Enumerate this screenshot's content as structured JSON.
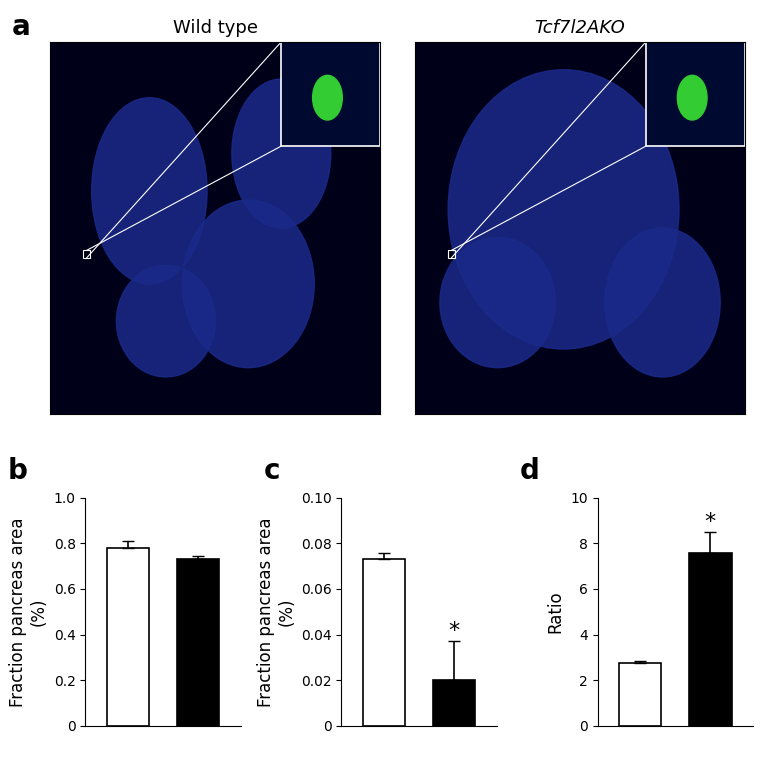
{
  "panel_a": {
    "annotations": [
      "a"
    ],
    "images": [
      {
        "title": "Wild type"
      },
      {
        "title": "Tcf7l2AKO"
      }
    ]
  },
  "chart_data": [
    {
      "type": "bar",
      "annotations": [
        "b"
      ],
      "y_label": "Fraction pancreas area\n(%)",
      "categories": [
        null,
        null
      ],
      "values": [
        0.78,
        0.73
      ],
      "errors": [
        0.03,
        0.015
      ],
      "colors": [
        "#ffffff",
        "#000000"
      ],
      "ylim": [
        0,
        1.0
      ],
      "yticks": [
        0,
        0.2,
        0.4,
        0.6,
        0.8,
        1.0
      ],
      "tick_labels": "y"
    },
    {
      "type": "bar",
      "annotations": [
        "c",
        {
          "text": "*",
          "category": 1
        }
      ],
      "y_label": "Fraction pancreas area\n(%)",
      "categories": [
        null,
        null
      ],
      "values": [
        0.073,
        0.02
      ],
      "errors": [
        0.003,
        0.017
      ],
      "colors": [
        "#ffffff",
        "#000000"
      ],
      "ylim": [
        0,
        0.1
      ],
      "yticks": [
        0,
        0.02,
        0.04,
        0.06,
        0.08,
        {
          "value": 0.1,
          "label": "0.10"
        }
      ],
      "tick_labels": "y"
    },
    {
      "type": "bar",
      "annotations": [
        "d",
        {
          "text": "*",
          "category": 1
        }
      ],
      "y_label": "Ratio",
      "categories": [
        null,
        null
      ],
      "values": [
        2.75,
        7.6
      ],
      "errors": [
        0.08,
        0.9
      ],
      "colors": [
        "#ffffff",
        "#000000"
      ],
      "ylim": [
        0,
        10
      ],
      "yticks": [
        0,
        2,
        4,
        6,
        8,
        10
      ],
      "tick_labels": "y"
    }
  ]
}
